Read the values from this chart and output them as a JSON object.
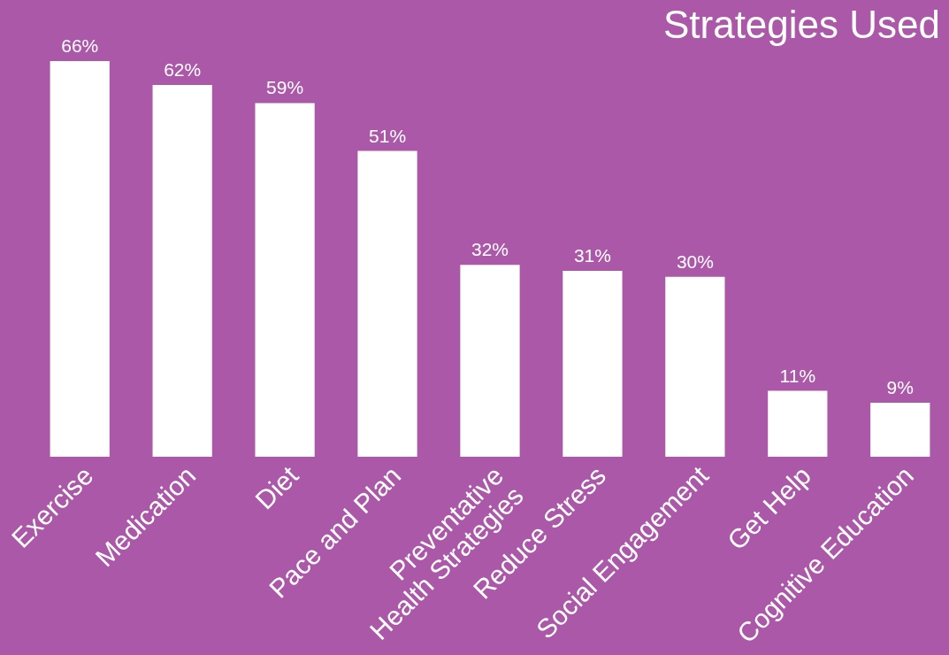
{
  "chart_data": {
    "type": "bar",
    "title": "Strategies Used",
    "categories": [
      "Exercise",
      "Medication",
      "Diet",
      "Pace and Plan",
      "Preventative\nHealth Strategies",
      "Reduce Stress",
      "Social Engagement",
      "Get Help",
      "Cognitive Education"
    ],
    "values": [
      66,
      62,
      59,
      51,
      32,
      31,
      30,
      11,
      9
    ],
    "value_labels": [
      "66%",
      "62%",
      "59%",
      "51%",
      "32%",
      "31%",
      "30%",
      "11%",
      "9%"
    ],
    "color": "#ffffff"
  }
}
